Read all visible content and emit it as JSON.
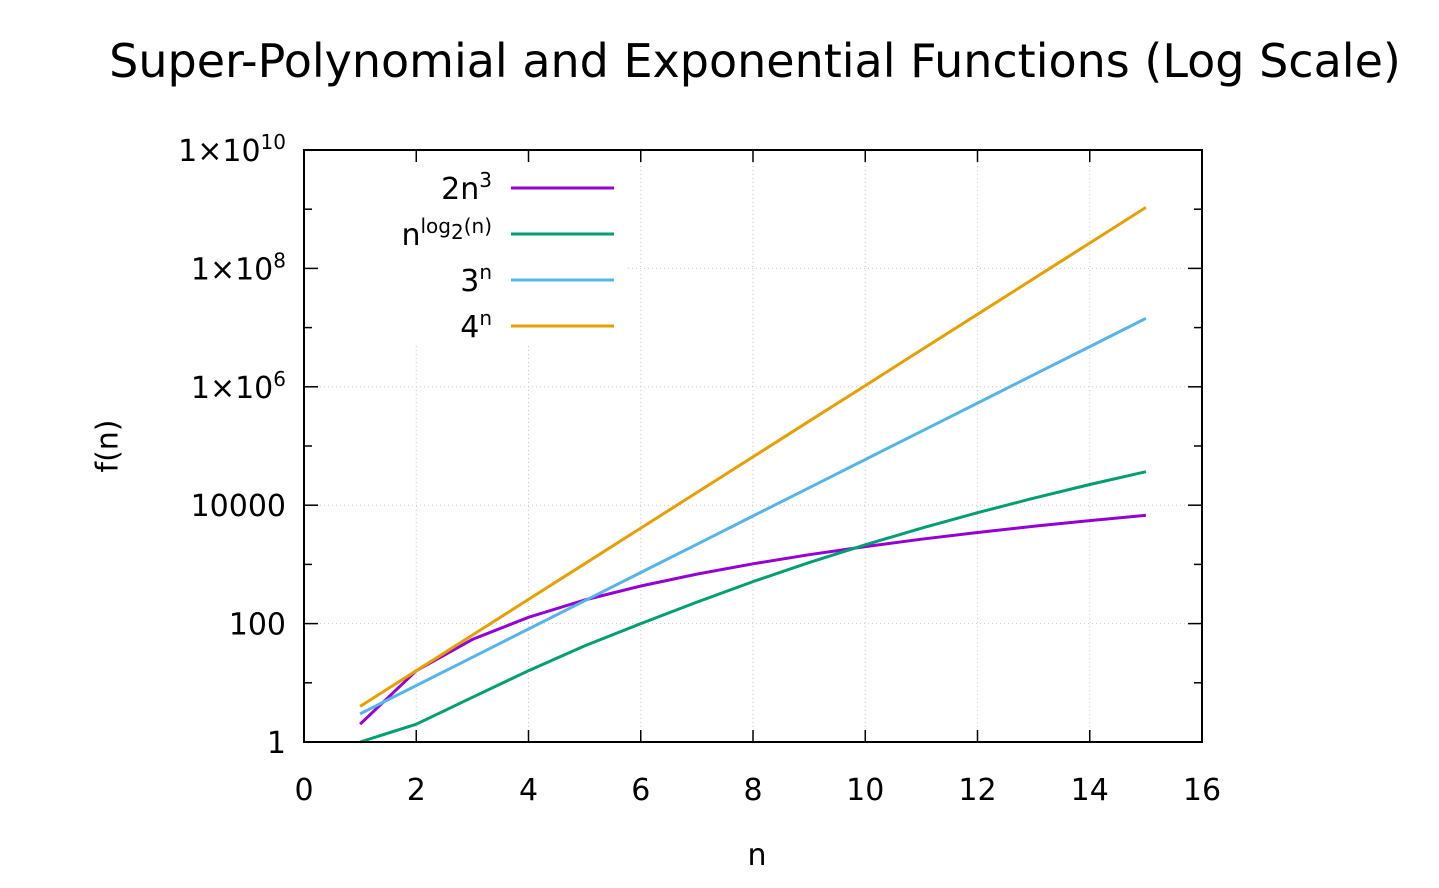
{
  "chart_data": {
    "type": "line",
    "title": "Super-Polynomial and Exponential Functions (Log Scale)",
    "xlabel": "n",
    "ylabel": "f(n)",
    "xlim": [
      0,
      16
    ],
    "ylim": [
      1,
      10000000000
    ],
    "yscale": "log",
    "grid": true,
    "legend_position": "top-left",
    "x_ticks": [
      "0",
      "2",
      "4",
      "6",
      "8",
      "10",
      "12",
      "14",
      "16"
    ],
    "y_ticks": [
      {
        "value": 1,
        "label": "1"
      },
      {
        "value": 100,
        "label": "100"
      },
      {
        "value": 10000,
        "label": "10000"
      },
      {
        "value": 1000000,
        "label": "1×10",
        "sup": "6"
      },
      {
        "value": 100000000,
        "label": "1×10",
        "sup": "8"
      },
      {
        "value": 10000000000,
        "label": "1×10",
        "sup": "10"
      }
    ],
    "x": [
      1,
      2,
      3,
      4,
      5,
      6,
      7,
      8,
      9,
      10,
      11,
      12,
      13,
      14,
      15
    ],
    "series": [
      {
        "name": "2n",
        "name_sup": "3",
        "color": "#9400d3",
        "values": [
          2,
          16,
          54,
          128,
          250,
          432,
          686,
          1024,
          1458,
          2000,
          2662,
          3456,
          4394,
          5488,
          6750
        ]
      },
      {
        "name": "n",
        "name_sup": "log",
        "name_sub": "2",
        "name_sup_tail": "(n)",
        "color": "#009e73",
        "values": [
          1,
          2,
          5.7,
          16,
          42,
          100,
          231,
          512,
          1073,
          2146,
          4090,
          7474,
          13150,
          22372,
          36800
        ]
      },
      {
        "name": "3",
        "name_sup": "n",
        "color": "#56b4e9",
        "values": [
          3,
          9,
          27,
          81,
          243,
          729,
          2187,
          6561,
          19683,
          59049,
          177147,
          531441,
          1594323,
          4782969,
          14348907
        ]
      },
      {
        "name": "4",
        "name_sup": "n",
        "color": "#e69f00",
        "values": [
          4,
          16,
          64,
          256,
          1024,
          4096,
          16384,
          65536,
          262144,
          1048576,
          4194304,
          16777216,
          67108864,
          268435456,
          1073741824
        ]
      }
    ]
  }
}
